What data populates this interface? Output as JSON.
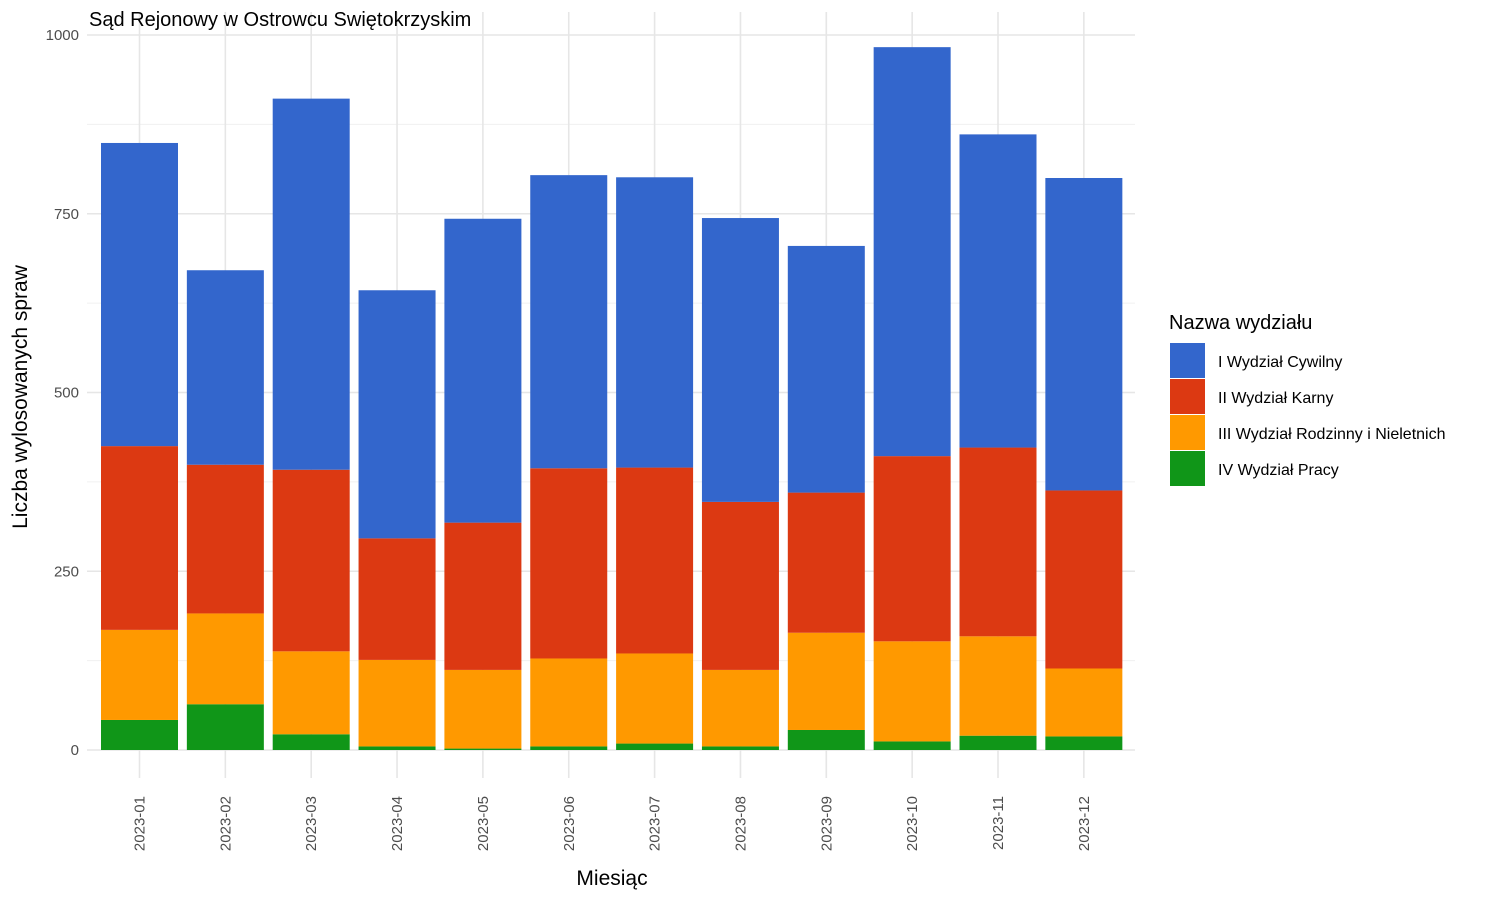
{
  "chart_data": {
    "type": "bar",
    "stacked": true,
    "title": "Sąd Rejonowy w Ostrowcu Swiętokrzyskim",
    "xlabel": "Miesiąc",
    "ylabel": "Liczba wylosowanych spraw",
    "ylim": [
      0,
      1000
    ],
    "yticks": [
      0,
      250,
      500,
      750,
      1000
    ],
    "grid": true,
    "legend": {
      "title": "Nazwa wydziału",
      "position": "right"
    },
    "categories": [
      "2023-01",
      "2023-02",
      "2023-03",
      "2023-04",
      "2023-05",
      "2023-06",
      "2023-07",
      "2023-08",
      "2023-09",
      "2023-10",
      "2023-11",
      "2023-12"
    ],
    "series": [
      {
        "name": "I Wydział Cywilny",
        "color": "#3366CC",
        "values": [
          424,
          272,
          519,
          347,
          425,
          410,
          406,
          397,
          345,
          572,
          438,
          437
        ]
      },
      {
        "name": "II Wydział Karny",
        "color": "#DC3912",
        "values": [
          257,
          208,
          254,
          170,
          206,
          266,
          260,
          235,
          196,
          259,
          264,
          249
        ]
      },
      {
        "name": "III Wydział Rodzinny i Nieletnich",
        "color": "#FF9900",
        "values": [
          126,
          127,
          116,
          121,
          110,
          123,
          126,
          107,
          136,
          140,
          139,
          95
        ]
      },
      {
        "name": "IV Wydział Pracy",
        "color": "#109618",
        "values": [
          42,
          64,
          22,
          5,
          2,
          5,
          9,
          5,
          28,
          12,
          20,
          19
        ]
      }
    ]
  }
}
